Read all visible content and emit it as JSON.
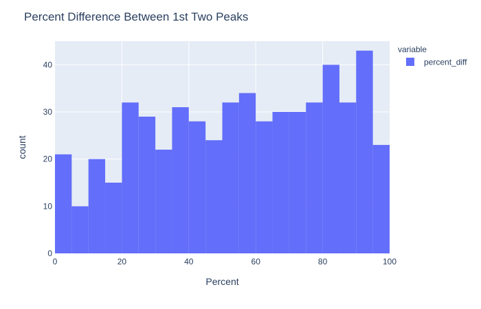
{
  "chart_data": {
    "type": "bar",
    "title": "Percent Difference Between 1st Two Peaks",
    "xlabel": "Percent",
    "ylabel": "count",
    "legend": {
      "title": "variable",
      "placement": "right",
      "entries": [
        {
          "name": "percent_diff",
          "color": "#636efa"
        }
      ]
    },
    "xlim": [
      0,
      100
    ],
    "ylim": [
      0,
      45
    ],
    "x_ticks": [
      0,
      20,
      40,
      60,
      80,
      100
    ],
    "y_ticks": [
      0,
      10,
      20,
      30,
      40
    ],
    "grid": true,
    "bin_width": 5,
    "bins": [
      {
        "x0": 0,
        "x1": 5,
        "count": 21
      },
      {
        "x0": 5,
        "x1": 10,
        "count": 10
      },
      {
        "x0": 10,
        "x1": 15,
        "count": 20
      },
      {
        "x0": 15,
        "x1": 20,
        "count": 15
      },
      {
        "x0": 20,
        "x1": 25,
        "count": 32
      },
      {
        "x0": 25,
        "x1": 30,
        "count": 29
      },
      {
        "x0": 30,
        "x1": 35,
        "count": 22
      },
      {
        "x0": 35,
        "x1": 40,
        "count": 31
      },
      {
        "x0": 40,
        "x1": 45,
        "count": 28
      },
      {
        "x0": 45,
        "x1": 50,
        "count": 24
      },
      {
        "x0": 50,
        "x1": 55,
        "count": 32
      },
      {
        "x0": 55,
        "x1": 60,
        "count": 34
      },
      {
        "x0": 60,
        "x1": 65,
        "count": 28
      },
      {
        "x0": 65,
        "x1": 70,
        "count": 30
      },
      {
        "x0": 70,
        "x1": 75,
        "count": 30
      },
      {
        "x0": 75,
        "x1": 80,
        "count": 32
      },
      {
        "x0": 80,
        "x1": 85,
        "count": 40
      },
      {
        "x0": 85,
        "x1": 90,
        "count": 32
      },
      {
        "x0": 90,
        "x1": 95,
        "count": 43
      },
      {
        "x0": 95,
        "x1": 100,
        "count": 23
      }
    ],
    "colors": {
      "bar": "#636efa",
      "plot_bg": "#e5ecf6",
      "grid": "#ffffff",
      "text": "#2a3f5f"
    }
  }
}
